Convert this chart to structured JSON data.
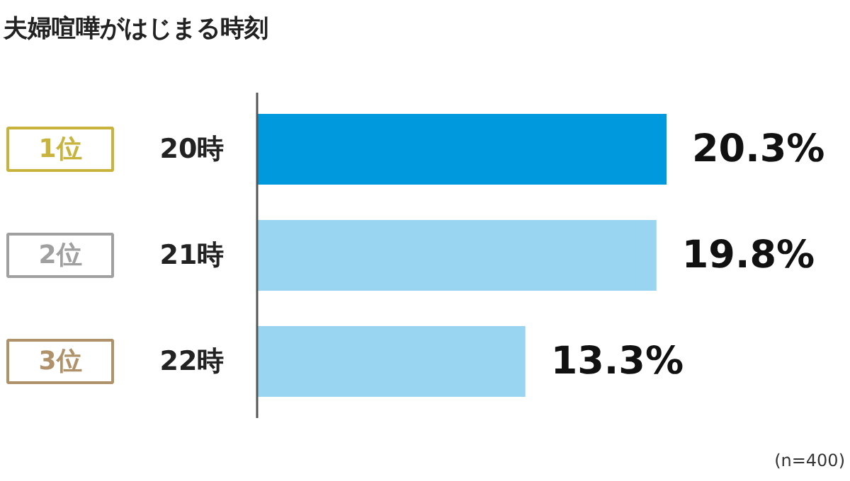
{
  "chart_data": {
    "type": "bar",
    "orientation": "horizontal",
    "title": "夫婦喧嘩がはじまる時刻",
    "categories": [
      "20時",
      "21時",
      "22時"
    ],
    "values": [
      20.3,
      19.8,
      13.3
    ],
    "colors": [
      "#0099dd",
      "#99d5f0",
      "#99d5f0"
    ],
    "value_labels": [
      "20.3%",
      "19.8%",
      "13.3%"
    ],
    "annotations": [
      "1位",
      "2位",
      "3位",
      "(n=400)"
    ]
  }
}
